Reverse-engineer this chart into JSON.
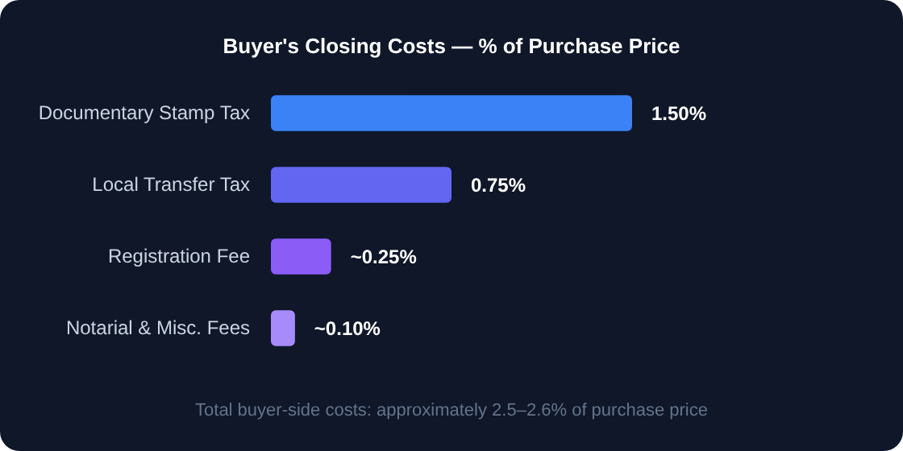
{
  "chart_data": {
    "type": "bar",
    "orientation": "horizontal",
    "title": "Buyer's Closing Costs — % of Purchase Price",
    "categories": [
      "Documentary Stamp Tax",
      "Local Transfer Tax",
      "Registration Fee",
      "Notarial & Misc. Fees"
    ],
    "values": [
      1.5,
      0.75,
      0.25,
      0.1
    ],
    "colors": [
      "#3b82f6",
      "#6366f1",
      "#8b5cf6",
      "#a78bfa"
    ],
    "value_labels": [
      "1.50%",
      "0.75%",
      "~0.25%",
      "~0.10%"
    ],
    "annotations": [
      "Total buyer-side costs: approximately 2.5–2.6% of purchase price"
    ]
  }
}
